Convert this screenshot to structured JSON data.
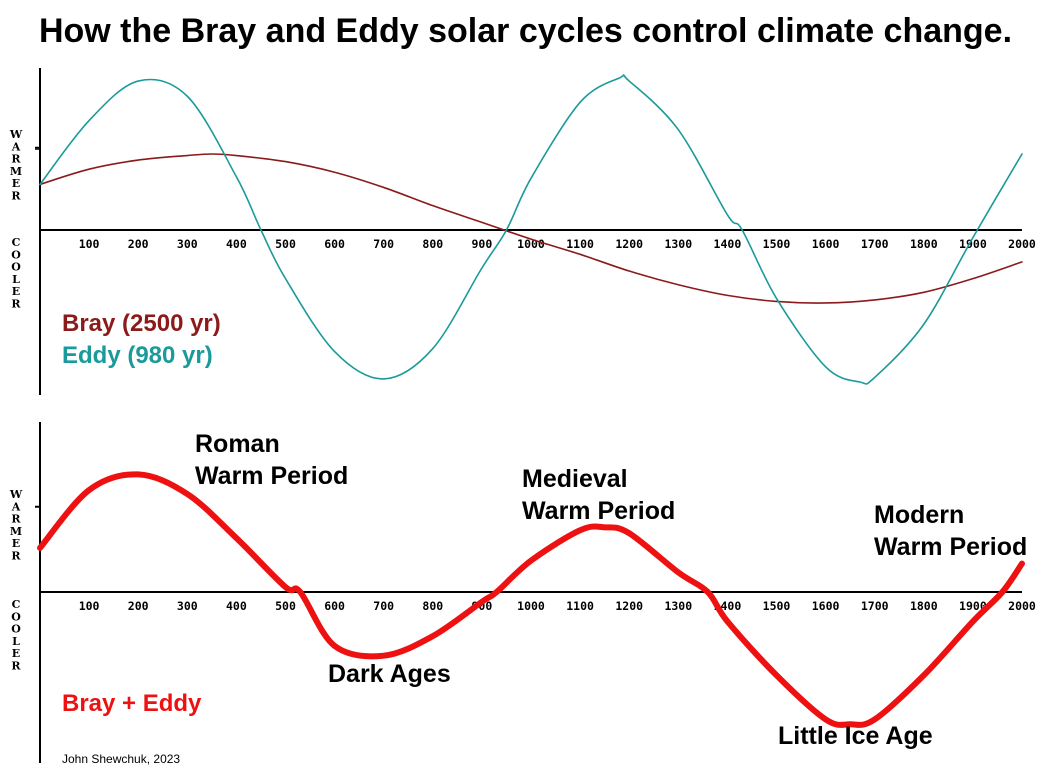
{
  "title": "How the Bray and Eddy solar cycles control climate change.",
  "credit": "John Shewchuk, 2023",
  "colors": {
    "bray": "#8b1a1a",
    "eddy": "#1a9a9a",
    "sum": "#ee1111",
    "axis": "#000000"
  },
  "chart_data": [
    {
      "type": "line",
      "ylabel_top": "WARMER",
      "ylabel_bottom": "COOLER",
      "xlim": [
        0,
        2000
      ],
      "ylim": [
        -1,
        1
      ],
      "x_ticks": [
        100,
        200,
        300,
        400,
        500,
        600,
        700,
        800,
        900,
        1000,
        1100,
        1200,
        1300,
        1400,
        1500,
        1600,
        1700,
        1800,
        1900,
        2000
      ],
      "series": [
        {
          "name": "Bray (2500 yr)",
          "x": [
            0,
            100,
            200,
            300,
            350,
            400,
            500,
            600,
            700,
            800,
            900,
            1000,
            1100,
            1200,
            1300,
            1400,
            1500,
            1600,
            1700,
            1800,
            1900,
            2000
          ],
          "y": [
            0.3,
            0.4,
            0.46,
            0.49,
            0.5,
            0.49,
            0.45,
            0.38,
            0.28,
            0.16,
            0.05,
            -0.06,
            -0.16,
            -0.27,
            -0.36,
            -0.43,
            -0.47,
            -0.48,
            -0.46,
            -0.41,
            -0.32,
            -0.21
          ]
        },
        {
          "name": "Eddy (980 yr)",
          "x": [
            0,
            100,
            200,
            300,
            400,
            450,
            500,
            600,
            700,
            800,
            900,
            950,
            1000,
            1100,
            1180,
            1200,
            1300,
            1400,
            1430,
            1500,
            1600,
            1670,
            1700,
            1800,
            1900,
            2000
          ],
          "y": [
            0.3,
            0.72,
            0.98,
            0.88,
            0.35,
            0.0,
            -0.32,
            -0.8,
            -0.98,
            -0.78,
            -0.25,
            0.0,
            0.34,
            0.84,
            1.0,
            0.98,
            0.66,
            0.1,
            0.0,
            -0.45,
            -0.9,
            -1.0,
            -0.97,
            -0.62,
            -0.05,
            0.5
          ]
        }
      ]
    },
    {
      "type": "line",
      "ylabel_top": "WARMER",
      "ylabel_bottom": "COOLER",
      "xlim": [
        0,
        2000
      ],
      "ylim": [
        -1.5,
        1.5
      ],
      "x_ticks": [
        100,
        200,
        300,
        400,
        500,
        600,
        700,
        800,
        900,
        1000,
        1100,
        1200,
        1300,
        1400,
        1500,
        1600,
        1700,
        1800,
        1900,
        2000
      ],
      "series": [
        {
          "name": "Bray + Eddy",
          "x": [
            0,
            100,
            200,
            300,
            400,
            500,
            530,
            600,
            700,
            800,
            900,
            930,
            1000,
            1100,
            1150,
            1200,
            1300,
            1360,
            1400,
            1500,
            1600,
            1650,
            1700,
            1800,
            1900,
            1960,
            2000
          ],
          "y": [
            0.45,
            1.04,
            1.2,
            1.0,
            0.55,
            0.05,
            0.0,
            -0.55,
            -0.65,
            -0.45,
            -0.1,
            0.0,
            0.32,
            0.63,
            0.66,
            0.6,
            0.2,
            0.0,
            -0.3,
            -0.85,
            -1.3,
            -1.35,
            -1.3,
            -0.85,
            -0.3,
            0.0,
            0.29
          ]
        }
      ],
      "annotations": [
        {
          "lines": [
            "Roman",
            "Warm Period"
          ],
          "x": 200,
          "y": 1.2
        },
        {
          "lines": [
            "Dark Ages"
          ],
          "x": 700,
          "y": -0.65
        },
        {
          "lines": [
            "Medieval",
            "Warm Period"
          ],
          "x": 1150,
          "y": 0.66
        },
        {
          "lines": [
            "Little Ice Age"
          ],
          "x": 1650,
          "y": -1.35
        },
        {
          "lines": [
            "Modern",
            "Warm Period"
          ],
          "x": 2000,
          "y": 0.29
        }
      ]
    }
  ]
}
